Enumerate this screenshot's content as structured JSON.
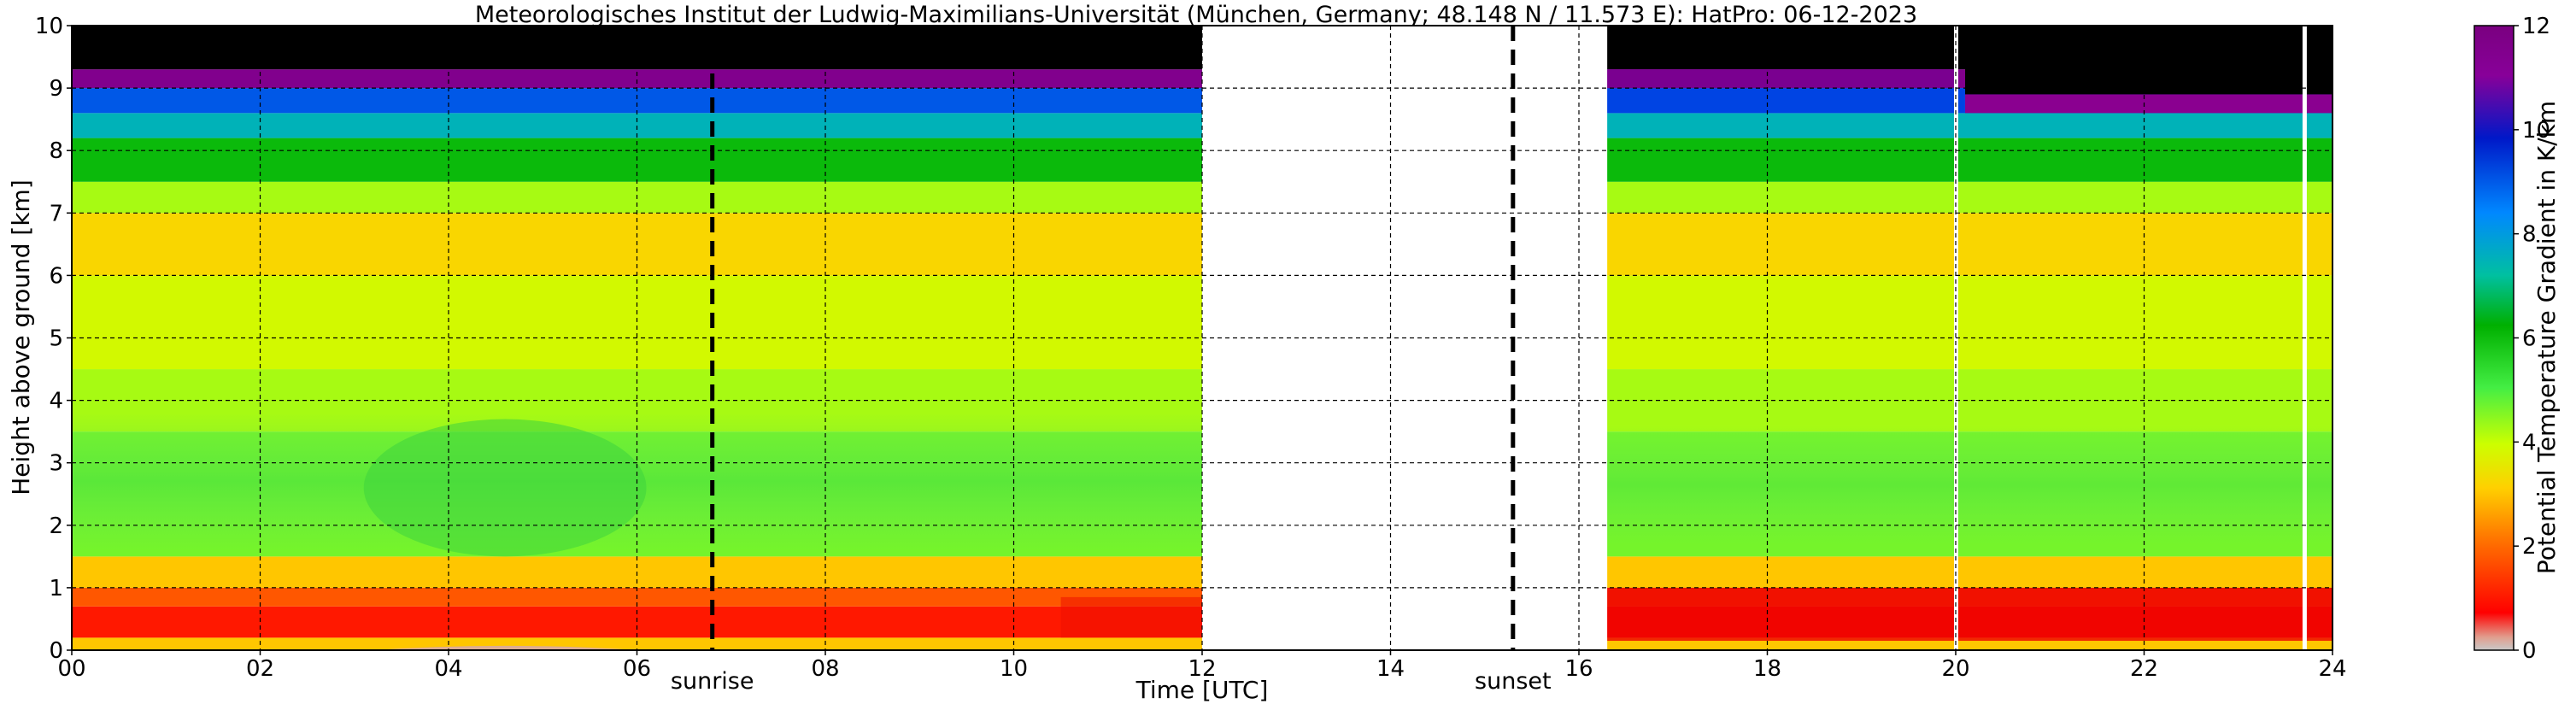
{
  "chart_data": {
    "type": "heatmap",
    "title": "Meteorologisches Institut der Ludwig-Maximilians-Universität (München, Germany; 48.148 N / 11.573 E):    HatPro: 06-12-2023",
    "xlabel": "Time [UTC]",
    "ylabel": "Height above ground [km]",
    "xlim": [
      0,
      24
    ],
    "ylim": [
      0,
      10
    ],
    "x_ticks": [
      "00",
      "02",
      "04",
      "06",
      "08",
      "10",
      "12",
      "14",
      "16",
      "18",
      "20",
      "22",
      "24"
    ],
    "y_ticks": [
      "0",
      "1",
      "2",
      "3",
      "4",
      "5",
      "6",
      "7",
      "8",
      "9",
      "10"
    ],
    "grid": true,
    "colorbar": {
      "label": "Potential Temperature Gradient in K/km",
      "range": [
        0,
        12
      ],
      "ticks": [
        "0",
        "2",
        "4",
        "6",
        "8",
        "10",
        "12"
      ]
    },
    "markers": [
      {
        "label": "sunrise",
        "time": 6.8
      },
      {
        "label": "sunset",
        "time": 15.3
      }
    ],
    "data_gaps": [
      [
        12.0,
        16.3
      ]
    ],
    "missing_profiles": [
      20.0,
      23.7
    ],
    "profile_bands": [
      {
        "height_range": [
          0.0,
          0.2
        ],
        "value": 3.0
      },
      {
        "height_range": [
          0.2,
          0.7
        ],
        "value": 1.0
      },
      {
        "height_range": [
          0.7,
          1.0
        ],
        "value": 1.8
      },
      {
        "height_range": [
          1.0,
          1.5
        ],
        "value": 3.0
      },
      {
        "height_range": [
          1.5,
          3.5
        ],
        "value": 4.6
      },
      {
        "height_range": [
          3.5,
          4.5
        ],
        "value": 4.2
      },
      {
        "height_range": [
          4.5,
          6.0
        ],
        "value": 3.8
      },
      {
        "height_range": [
          6.0,
          7.0
        ],
        "value": 3.2
      },
      {
        "height_range": [
          7.0,
          7.5
        ],
        "value": 4.2
      },
      {
        "height_range": [
          7.5,
          8.2
        ],
        "value": 6.0
      },
      {
        "height_range": [
          8.2,
          8.6
        ],
        "value": 7.5
      },
      {
        "height_range": [
          8.6,
          9.0
        ],
        "value": 9.0
      },
      {
        "height_range": [
          9.0,
          9.3
        ],
        "value": 11.5
      },
      {
        "height_range": [
          9.3,
          10.0
        ],
        "value": 13.0
      }
    ]
  }
}
